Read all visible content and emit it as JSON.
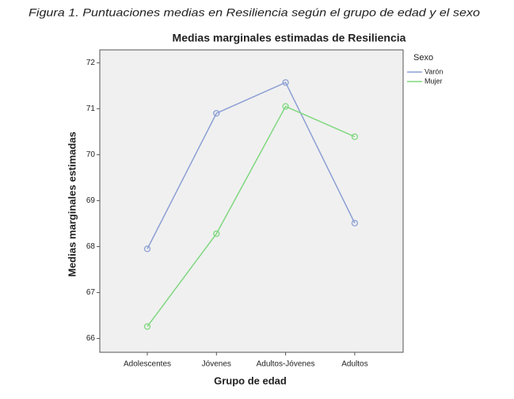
{
  "caption": "Figura 1. Puntuaciones medias en Resiliencia según el grupo de edad y el sexo",
  "chart_data": {
    "type": "line",
    "title": "Medias marginales estimadas de Resiliencia",
    "x_label": "Grupo de edad",
    "y_label": "Medias marginales estimadas",
    "categories": [
      "Adolescentes",
      "Jóvenes",
      "Adultos-Jóvenes",
      "Adultos"
    ],
    "series": [
      {
        "name": "Varón",
        "color": "#8c9fd4",
        "values": [
          67.95,
          70.9,
          71.57,
          68.51
        ]
      },
      {
        "name": "Mujer",
        "color": "#7fd87f",
        "values": [
          66.26,
          68.28,
          71.05,
          70.39
        ]
      }
    ],
    "legend_title": "Sexo",
    "legend_position": "right",
    "ylim": [
      65.7,
      72.28
    ],
    "yticks": [
      66,
      67,
      68,
      69,
      70,
      71,
      72
    ],
    "grid": false
  }
}
